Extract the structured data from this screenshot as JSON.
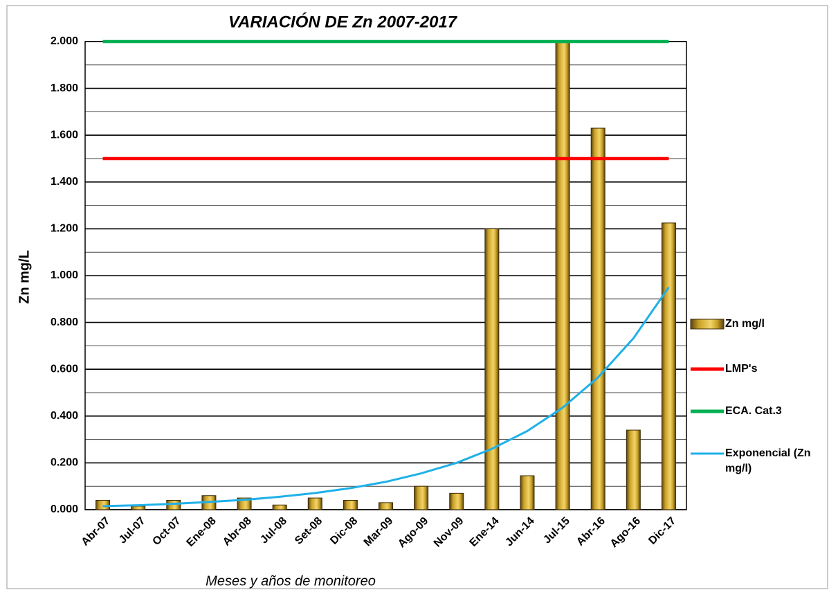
{
  "chart_data": {
    "type": "bar",
    "title": "VARIACIÓN DE Zn 2007-2017",
    "y_label": "Zn mg/L",
    "x_label": "Meses  y años de monitoreo",
    "categories": [
      "Abr-07",
      "Jul-07",
      "Oct-07",
      "Ene-08",
      "Abr-08",
      "Jul-08",
      "Set-08",
      "Dic-08",
      "Mar-09",
      "Ago-09",
      "Nov-09",
      "Ene-14",
      "Jun-14",
      "Jul-15",
      "Abr-16",
      "Ago-16",
      "Dic-17"
    ],
    "series": [
      {
        "name": "Zn mg/l",
        "type": "bar",
        "color": "#c9a227",
        "values": [
          0.04,
          0.015,
          0.04,
          0.06,
          0.05,
          0.02,
          0.05,
          0.04,
          0.03,
          0.1,
          0.07,
          1.2,
          0.145,
          2.0,
          1.63,
          0.34,
          1.225
        ]
      },
      {
        "name": "LMP's",
        "type": "line",
        "color": "#ff0000",
        "values": [
          1.5,
          1.5,
          1.5,
          1.5,
          1.5,
          1.5,
          1.5,
          1.5,
          1.5,
          1.5,
          1.5,
          1.5,
          1.5,
          1.5,
          1.5,
          1.5,
          1.5
        ]
      },
      {
        "name": "ECA. Cat.3",
        "type": "line",
        "color": "#00b050",
        "values": [
          2.0,
          2.0,
          2.0,
          2.0,
          2.0,
          2.0,
          2.0,
          2.0,
          2.0,
          2.0,
          2.0,
          2.0,
          2.0,
          2.0,
          2.0,
          2.0,
          2.0
        ]
      },
      {
        "name": "Exponencial (Zn mg/l)",
        "type": "line",
        "color": "#1fb0e8",
        "values": [
          0.015,
          0.019,
          0.025,
          0.033,
          0.042,
          0.055,
          0.071,
          0.092,
          0.119,
          0.155,
          0.2,
          0.26,
          0.336,
          0.436,
          0.565,
          0.732,
          0.95
        ]
      }
    ],
    "ylim": [
      0,
      2
    ],
    "yticks": [
      {
        "value": 0,
        "label": "0.000"
      },
      {
        "value": 0.2,
        "label": "0.200"
      },
      {
        "value": 0.4,
        "label": "0.400"
      },
      {
        "value": 0.6,
        "label": "0.600"
      },
      {
        "value": 0.8,
        "label": "0.800"
      },
      {
        "value": 1,
        "label": "1.000"
      },
      {
        "value": 1.2,
        "label": "1.200"
      },
      {
        "value": 1.4,
        "label": "1.400"
      },
      {
        "value": 1.6,
        "label": "1.600"
      },
      {
        "value": 1.8,
        "label": "1.800"
      },
      {
        "value": 2,
        "label": "2.000"
      }
    ],
    "minor_yticks": [
      0.1,
      0.3,
      0.5,
      0.7,
      0.9,
      1.1,
      1.3,
      1.5,
      1.7,
      1.9
    ],
    "grid": true,
    "legend": "right"
  }
}
